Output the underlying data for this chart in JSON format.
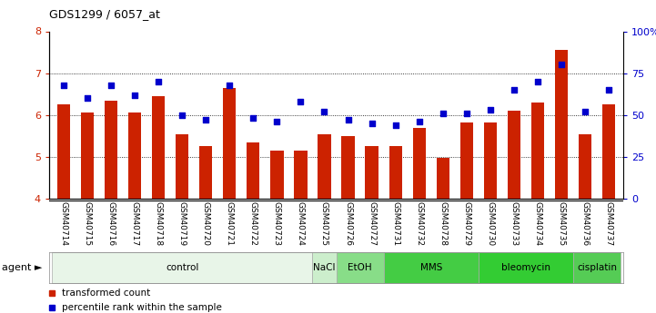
{
  "title": "GDS1299 / 6057_at",
  "samples": [
    "GSM40714",
    "GSM40715",
    "GSM40716",
    "GSM40717",
    "GSM40718",
    "GSM40719",
    "GSM40720",
    "GSM40721",
    "GSM40722",
    "GSM40723",
    "GSM40724",
    "GSM40725",
    "GSM40726",
    "GSM40727",
    "GSM40731",
    "GSM40732",
    "GSM40728",
    "GSM40729",
    "GSM40730",
    "GSM40733",
    "GSM40734",
    "GSM40735",
    "GSM40736",
    "GSM40737"
  ],
  "bar_values": [
    6.25,
    6.05,
    6.35,
    6.05,
    6.45,
    5.55,
    5.25,
    6.65,
    5.35,
    5.15,
    5.15,
    5.55,
    5.5,
    5.25,
    5.25,
    5.7,
    4.98,
    5.82,
    5.82,
    6.1,
    6.3,
    7.55,
    5.55,
    6.25
  ],
  "dot_values": [
    68,
    60,
    68,
    62,
    70,
    50,
    47,
    68,
    48,
    46,
    58,
    52,
    47,
    45,
    44,
    46,
    51,
    51,
    53,
    65,
    70,
    80,
    52,
    65
  ],
  "bar_color": "#cc2200",
  "dot_color": "#0000cc",
  "ylim_left": [
    4,
    8
  ],
  "ylim_right": [
    0,
    100
  ],
  "yticks_left": [
    4,
    5,
    6,
    7,
    8
  ],
  "yticks_right": [
    0,
    25,
    50,
    75,
    100
  ],
  "ytick_labels_right": [
    "0",
    "25",
    "50",
    "75",
    "100%"
  ],
  "groups": [
    {
      "label": "control",
      "start": 0,
      "end": 10,
      "color": "#e8f5e8"
    },
    {
      "label": "NaCl",
      "start": 11,
      "end": 11,
      "color": "#cceecc"
    },
    {
      "label": "EtOH",
      "start": 12,
      "end": 13,
      "color": "#88dd88"
    },
    {
      "label": "MMS",
      "start": 14,
      "end": 17,
      "color": "#44cc44"
    },
    {
      "label": "bleomycin",
      "start": 18,
      "end": 21,
      "color": "#33cc33"
    },
    {
      "label": "cisplatin",
      "start": 22,
      "end": 23,
      "color": "#55cc55"
    }
  ],
  "agent_label": "agent ►",
  "legend_bar_label": "transformed count",
  "legend_dot_label": "percentile rank within the sample",
  "bar_width": 0.55,
  "ybase": 4
}
